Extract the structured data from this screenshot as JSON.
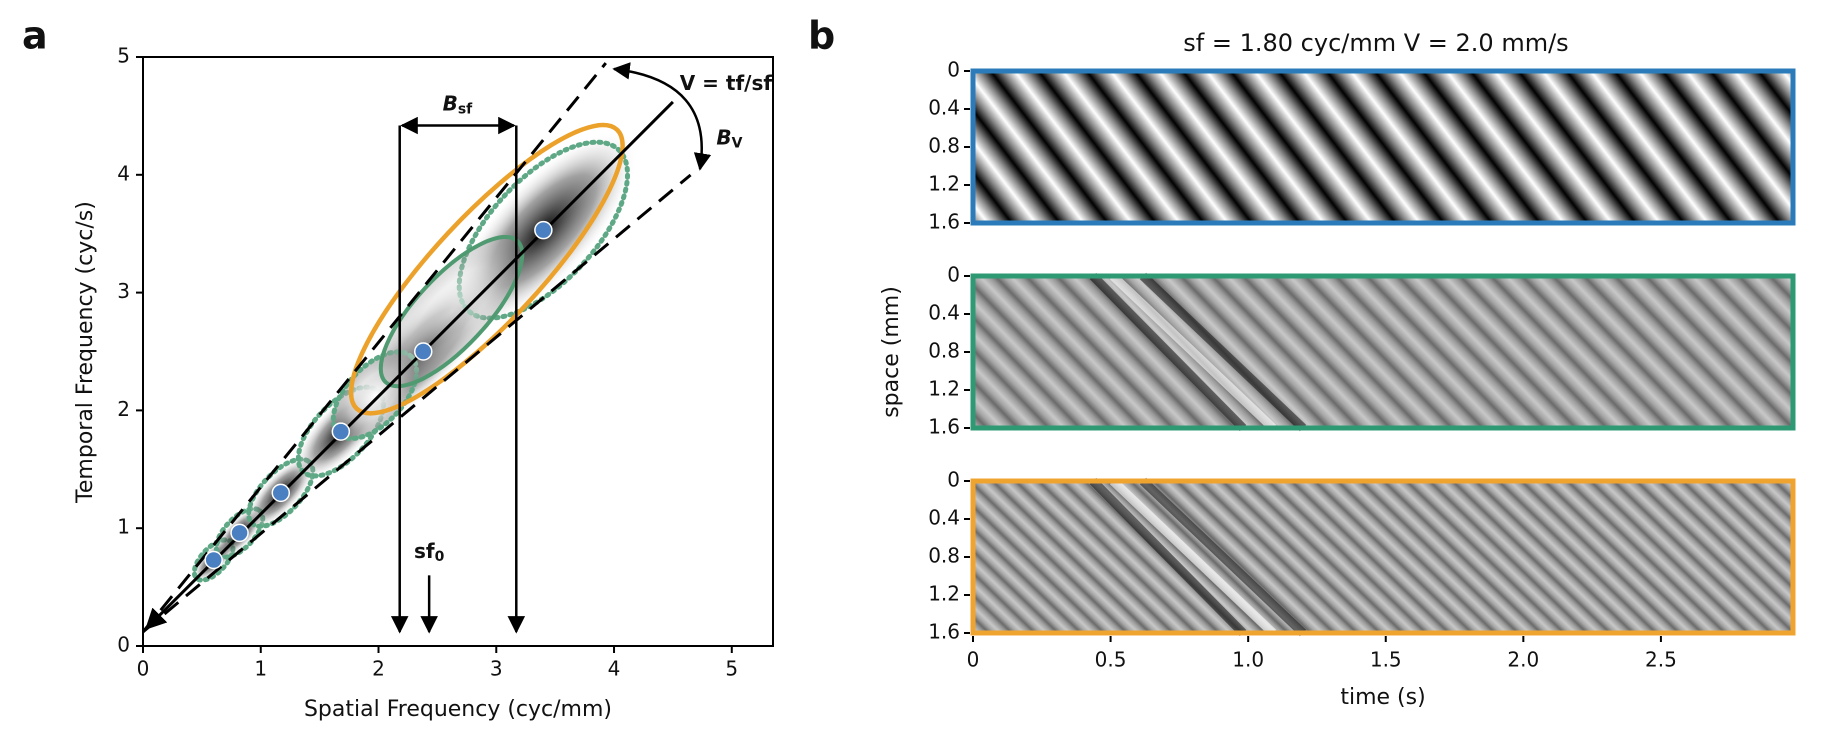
{
  "chart_data": [
    {
      "type": "scatter",
      "panel_label": "a",
      "xlabel": "Spatial Frequency (cyc/mm)",
      "ylabel": "Temporal Frequency (cyc/s)",
      "x": [
        0.6,
        0.82,
        1.17,
        1.68,
        2.38,
        3.4
      ],
      "series": [
        {
          "color": "#4a7fc1",
          "values": [
            0.73,
            0.96,
            1.3,
            1.82,
            2.5,
            3.53
          ]
        }
      ],
      "xlim": [
        0,
        5.35
      ],
      "ylim": [
        0,
        5
      ],
      "xticks": [
        0,
        1,
        2,
        3,
        4,
        5
      ],
      "yticks": [
        0,
        1,
        2,
        3,
        4,
        5
      ],
      "annotations": {
        "velocity": "V = tf/sf",
        "bsf": {
          "main": "B",
          "sub": "sf"
        },
        "bv": {
          "main": "B",
          "sub": "V"
        },
        "sf0": {
          "main": "sf",
          "sub": "0"
        }
      }
    },
    {
      "type": "image",
      "panel_label": "b",
      "title": "sf = 1.80 cyc/mm V = 2.0 mm/s",
      "xlabel": "time (s)",
      "ylabel": "space (mm)",
      "xlim": [
        0,
        2.98
      ],
      "ylim": [
        0,
        1.6
      ],
      "xticks": [
        0,
        0.5,
        {
          "value": 1,
          "label": "1.0"
        },
        1.5,
        {
          "value": 2,
          "label": "2.0"
        },
        2.5
      ],
      "yticks": [
        0,
        0.4,
        0.8,
        1.2,
        1.6
      ],
      "panel_colors": [
        "#2b7bba",
        "#2e9a74",
        "#f0a430"
      ]
    }
  ]
}
